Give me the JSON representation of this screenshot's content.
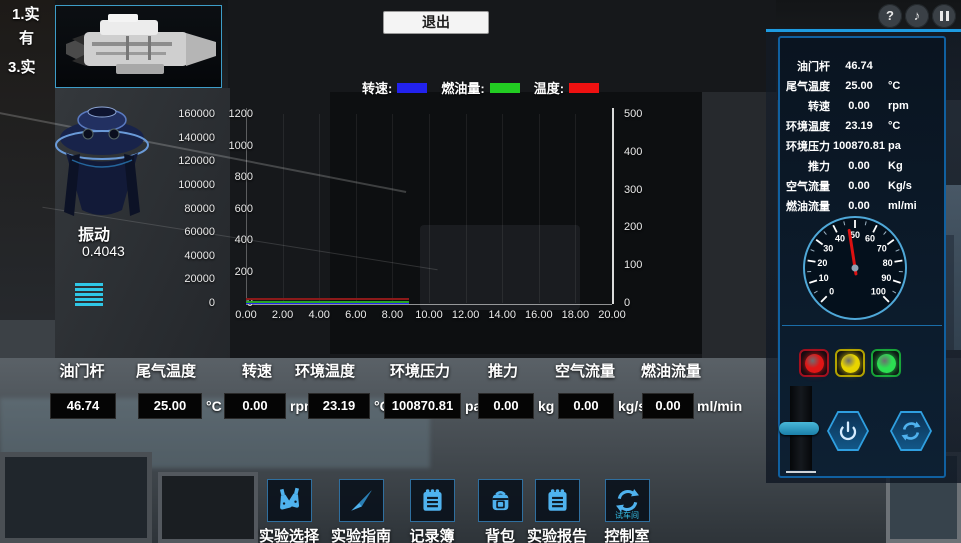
{
  "top_bar": {
    "exit_label": "退出",
    "help_icon": "?",
    "music_icon": "♪"
  },
  "instructions": {
    "lines": [
      "1.实",
      "有",
      "3.实"
    ]
  },
  "vibration": {
    "label": "振动",
    "value": "0.4043"
  },
  "legend": [
    {
      "label": "转速:",
      "color": "#2222ee"
    },
    {
      "label": "燃油量:",
      "color": "#22cc22"
    },
    {
      "label": "温度:",
      "color": "#ee1111"
    }
  ],
  "chart_data": {
    "type": "line",
    "title": "",
    "legend_position": "top",
    "x_range": [
      0,
      20
    ],
    "x_ticks": [
      "0.00",
      "2.00",
      "4.00",
      "6.00",
      "8.00",
      "10.00",
      "12.00",
      "14.00",
      "16.00",
      "18.00",
      "20.00"
    ],
    "axes": {
      "left_outer": {
        "name": "转速",
        "range": [
          0,
          160000
        ],
        "ticks": [
          "160000",
          "140000",
          "120000",
          "100000",
          "80000",
          "60000",
          "40000",
          "20000",
          "0"
        ]
      },
      "left_inner": {
        "name": "温度",
        "range": [
          0,
          1200
        ],
        "ticks": [
          "1200",
          "1000",
          "800",
          "600",
          "400",
          "200",
          "0"
        ]
      },
      "right": {
        "name": "燃油量",
        "range": [
          0,
          500
        ],
        "ticks": [
          "500",
          "400",
          "300",
          "200",
          "100",
          "0"
        ]
      }
    },
    "series": [
      {
        "name": "转速",
        "color": "#2222ee",
        "axis": "left_outer",
        "x": [
          0,
          8.9
        ],
        "y": [
          0,
          0
        ]
      },
      {
        "name": "温度",
        "color": "#8b1a1a",
        "axis": "left_inner",
        "x": [
          0,
          8.9
        ],
        "y": [
          25,
          25
        ]
      },
      {
        "name": "燃油量",
        "color": "#28a428",
        "axis": "right",
        "x": [
          0,
          8.9
        ],
        "y": [
          3,
          3
        ]
      }
    ]
  },
  "readouts": [
    {
      "label": "油门杆",
      "value": "46.74",
      "unit": ""
    },
    {
      "label": "尾气温度",
      "value": "25.00",
      "unit": "°C"
    },
    {
      "label": "转速",
      "value": "0.00",
      "unit": "rpm"
    },
    {
      "label": "环境温度",
      "value": "23.19",
      "unit": "°C"
    },
    {
      "label": "环境压力",
      "value": "100870.81",
      "unit": "pa"
    },
    {
      "label": "推力",
      "value": "0.00",
      "unit": "kg"
    },
    {
      "label": "空气流量",
      "value": "0.00",
      "unit": "kg/s"
    },
    {
      "label": "燃油流量",
      "value": "0.00",
      "unit": "ml/min"
    }
  ],
  "toolbar": [
    {
      "label": "实验选择",
      "icon": "flasks-icon"
    },
    {
      "label": "实验指南",
      "icon": "compass-icon"
    },
    {
      "label": "记录簿",
      "icon": "notebook-icon"
    },
    {
      "label": "背包",
      "icon": "backpack-icon"
    },
    {
      "label": "实验报告",
      "icon": "notebook-icon"
    },
    {
      "label": "控制室",
      "icon": "cycle-icon",
      "badge": "试车间"
    }
  ],
  "panel": {
    "params": [
      {
        "label": "油门杆",
        "value": "46.74",
        "unit": ""
      },
      {
        "label": "尾气温度",
        "value": "25.00",
        "unit": "°C"
      },
      {
        "label": "转速",
        "value": "0.00",
        "unit": "rpm"
      },
      {
        "label": "环境温度",
        "value": "23.19",
        "unit": "°C"
      },
      {
        "label": "环境压力",
        "value": "100870.81",
        "unit": "pa"
      },
      {
        "label": "推力",
        "value": "0.00",
        "unit": "Kg"
      },
      {
        "label": "空气流量",
        "value": "0.00",
        "unit": "Kg/s"
      },
      {
        "label": "燃油流量",
        "value": "0.00",
        "unit": "ml/mi"
      }
    ],
    "gauge": {
      "min": 0,
      "max": 100,
      "numbers": [
        0,
        10,
        20,
        30,
        40,
        50,
        60,
        70,
        80,
        90,
        100
      ],
      "value": 46.74,
      "needle_color": "#dd1111"
    },
    "lights": [
      {
        "name": "red-light",
        "color": "#e01616",
        "border": "#a01020"
      },
      {
        "name": "yellow-light",
        "color": "#e8d400",
        "border": "#b0a000"
      },
      {
        "name": "green-light",
        "color": "#2ce052",
        "border": "#18a038"
      }
    ]
  }
}
